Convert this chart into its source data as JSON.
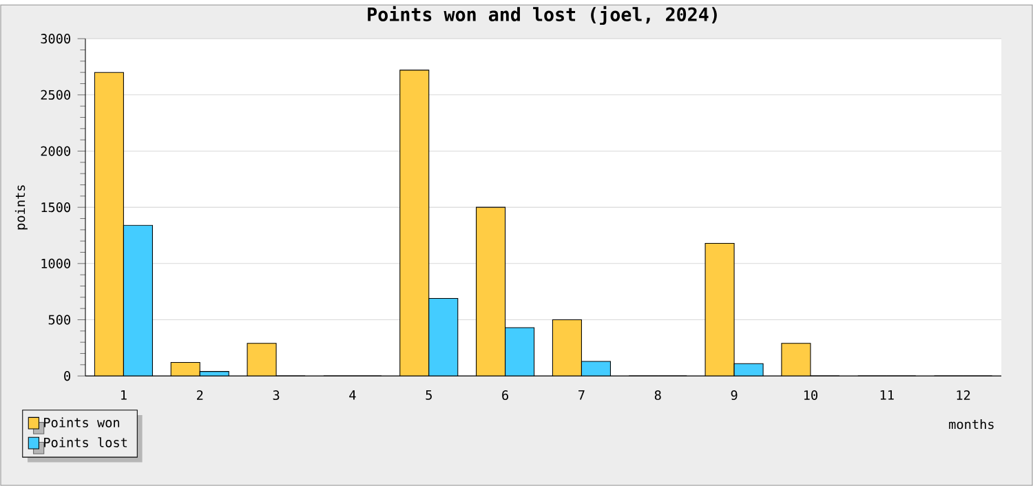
{
  "chart_data": {
    "type": "bar",
    "title": "Points won and lost (joel, 2024)",
    "xlabel": "months",
    "ylabel": "points",
    "categories": [
      "1",
      "2",
      "3",
      "4",
      "5",
      "6",
      "7",
      "8",
      "9",
      "10",
      "11",
      "12"
    ],
    "series": [
      {
        "name": "Points won",
        "color": "#ffcc44",
        "values": [
          2700,
          120,
          290,
          0,
          2720,
          1500,
          500,
          0,
          1180,
          290,
          0,
          0
        ]
      },
      {
        "name": "Points lost",
        "color": "#44ccff",
        "values": [
          1340,
          40,
          0,
          0,
          690,
          430,
          130,
          0,
          110,
          0,
          0,
          0
        ]
      }
    ],
    "ylim": [
      0,
      3000
    ],
    "yticks": [
      0,
      500,
      1000,
      1500,
      2000,
      2500,
      3000
    ],
    "grid": "y",
    "legend": "bottom left"
  }
}
